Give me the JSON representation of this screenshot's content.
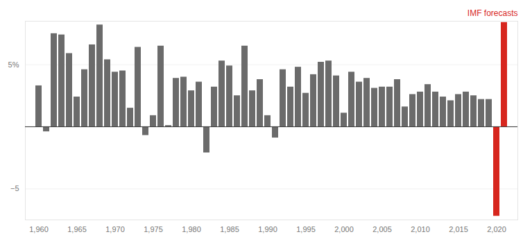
{
  "chart_data": {
    "type": "bar",
    "x": [
      1960,
      1961,
      1962,
      1963,
      1964,
      1965,
      1966,
      1967,
      1968,
      1969,
      1970,
      1971,
      1972,
      1973,
      1974,
      1975,
      1976,
      1977,
      1978,
      1979,
      1980,
      1981,
      1982,
      1983,
      1984,
      1985,
      1986,
      1987,
      1988,
      1989,
      1990,
      1991,
      1992,
      1993,
      1994,
      1995,
      1996,
      1997,
      1998,
      1999,
      2000,
      2001,
      2002,
      2003,
      2004,
      2005,
      2006,
      2007,
      2008,
      2009,
      2010,
      2011,
      2012,
      2013,
      2014,
      2015,
      2016,
      2017,
      2018,
      2019,
      2020,
      2021
    ],
    "values": [
      3.3,
      -0.4,
      7.5,
      7.4,
      5.9,
      2.4,
      4.6,
      6.6,
      8.2,
      5.4,
      4.4,
      4.5,
      1.5,
      6.4,
      -0.7,
      0.9,
      6.5,
      0.1,
      3.9,
      4.0,
      2.9,
      3.6,
      -2.1,
      3.2,
      5.3,
      4.9,
      2.5,
      6.5,
      2.9,
      3.8,
      0.9,
      -0.9,
      4.6,
      3.2,
      4.8,
      2.7,
      4.2,
      5.2,
      5.3,
      4.1,
      1.1,
      4.4,
      3.6,
      3.9,
      3.1,
      3.2,
      3.2,
      3.8,
      1.6,
      2.6,
      2.8,
      3.4,
      2.8,
      2.4,
      2.1,
      2.6,
      2.8,
      2.5,
      2.2,
      2.2,
      -7.2,
      8.4
    ],
    "colors": [
      "#6b6b6b",
      "#6b6b6b",
      "#6b6b6b",
      "#6b6b6b",
      "#6b6b6b",
      "#6b6b6b",
      "#6b6b6b",
      "#6b6b6b",
      "#6b6b6b",
      "#6b6b6b",
      "#6b6b6b",
      "#6b6b6b",
      "#6b6b6b",
      "#6b6b6b",
      "#6b6b6b",
      "#6b6b6b",
      "#6b6b6b",
      "#6b6b6b",
      "#6b6b6b",
      "#6b6b6b",
      "#6b6b6b",
      "#6b6b6b",
      "#6b6b6b",
      "#6b6b6b",
      "#6b6b6b",
      "#6b6b6b",
      "#6b6b6b",
      "#6b6b6b",
      "#6b6b6b",
      "#6b6b6b",
      "#6b6b6b",
      "#6b6b6b",
      "#6b6b6b",
      "#6b6b6b",
      "#6b6b6b",
      "#6b6b6b",
      "#6b6b6b",
      "#6b6b6b",
      "#6b6b6b",
      "#6b6b6b",
      "#6b6b6b",
      "#6b6b6b",
      "#6b6b6b",
      "#6b6b6b",
      "#6b6b6b",
      "#6b6b6b",
      "#6b6b6b",
      "#6b6b6b",
      "#6b6b6b",
      "#6b6b6b",
      "#6b6b6b",
      "#6b6b6b",
      "#6b6b6b",
      "#6b6b6b",
      "#6b6b6b",
      "#6b6b6b",
      "#6b6b6b",
      "#6b6b6b",
      "#6b6b6b",
      "#6b6b6b",
      "#d7261e",
      "#d7261e"
    ],
    "xticks": [
      1960,
      1965,
      1970,
      1975,
      1980,
      1985,
      1990,
      1995,
      2000,
      2005,
      2010,
      2015,
      2020
    ],
    "ylim": [
      -7.5,
      8.5
    ],
    "yticks": [
      {
        "value": -5,
        "label": "−5"
      },
      {
        "value": 5,
        "label": "5%"
      }
    ],
    "grid": true,
    "annotations": [
      {
        "text": "IMF forecasts",
        "color": "#d7261e"
      }
    ]
  }
}
